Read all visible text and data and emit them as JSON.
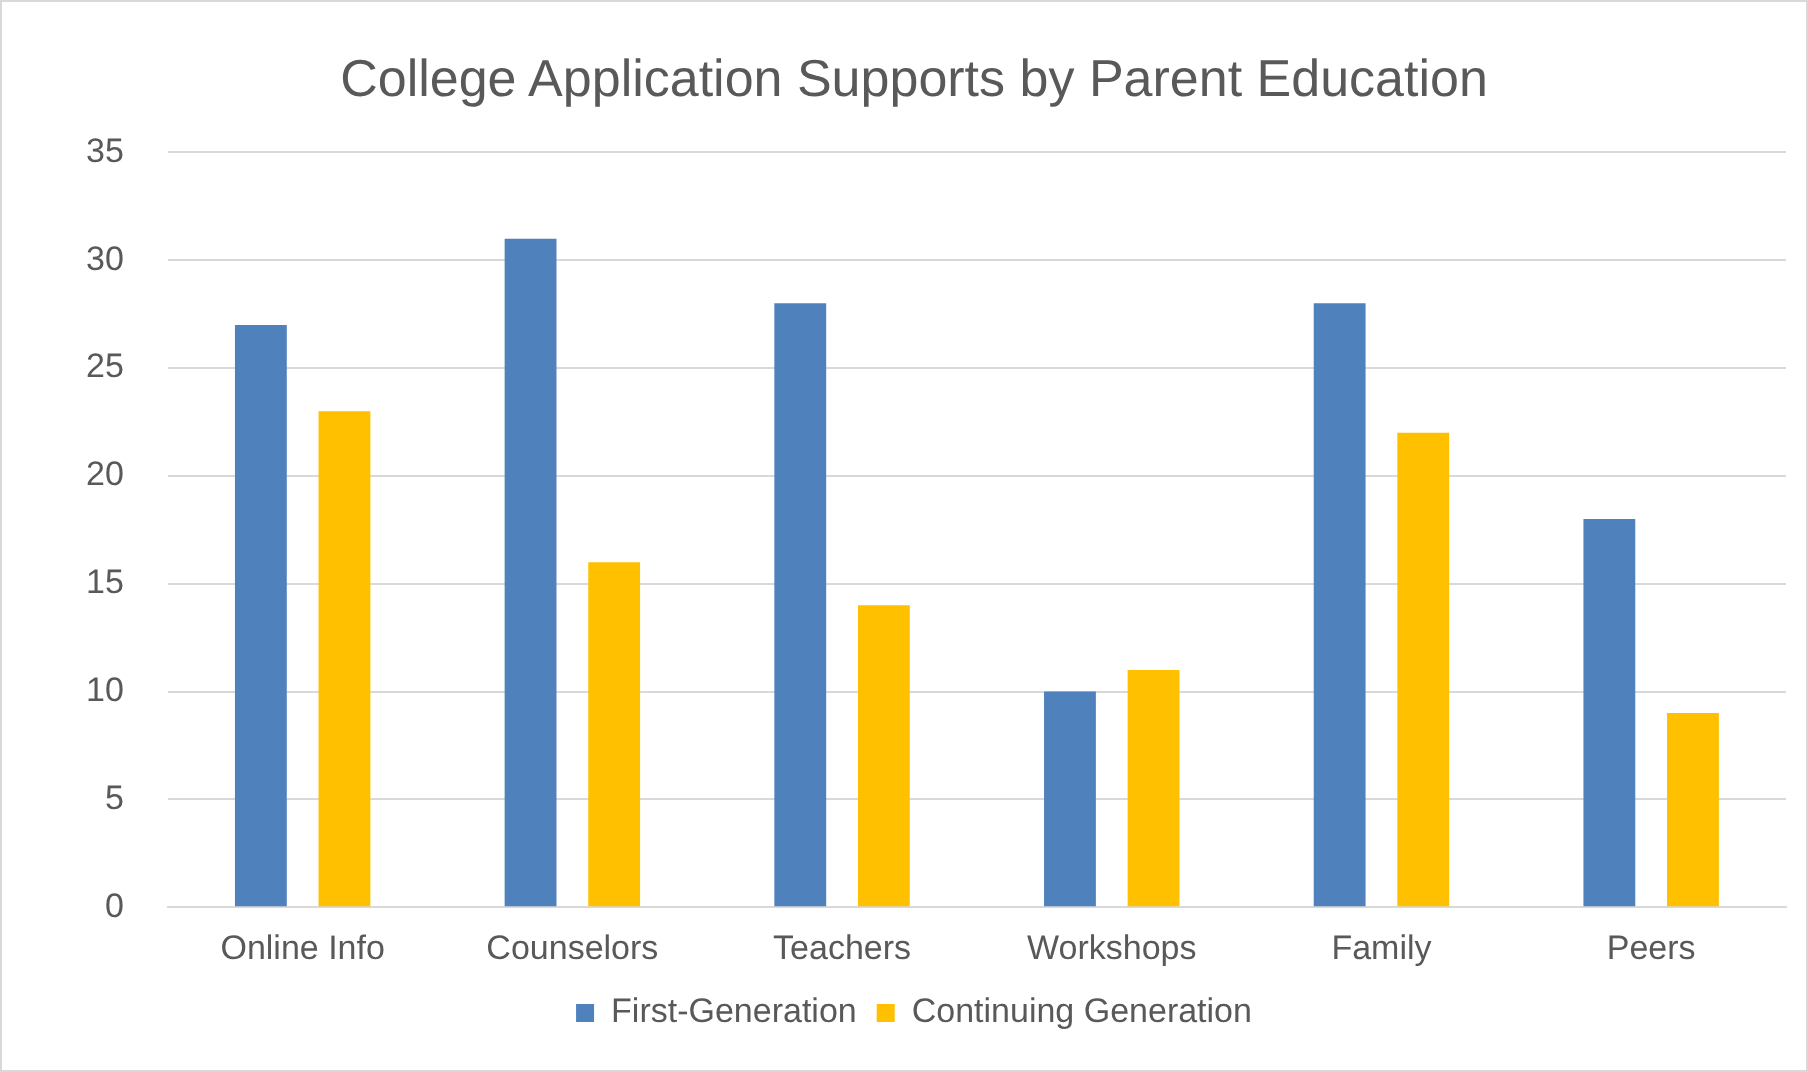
{
  "chart_data": {
    "type": "bar",
    "title": "College Application Supports by Parent Education",
    "categories": [
      "Online Info",
      "Counselors",
      "Teachers",
      "Workshops",
      "Family",
      "Peers"
    ],
    "series": [
      {
        "name": "First-Generation",
        "color": "#4f81bd",
        "values": [
          27,
          31,
          28,
          10,
          28,
          18
        ]
      },
      {
        "name": "Continuing Generation",
        "color": "#ffc000",
        "values": [
          23,
          16,
          14,
          11,
          22,
          9
        ]
      }
    ],
    "ylim": [
      0,
      35
    ],
    "yticks": [
      0,
      5,
      10,
      15,
      20,
      25,
      30,
      35
    ],
    "grid": "y",
    "legend": "bottom"
  }
}
